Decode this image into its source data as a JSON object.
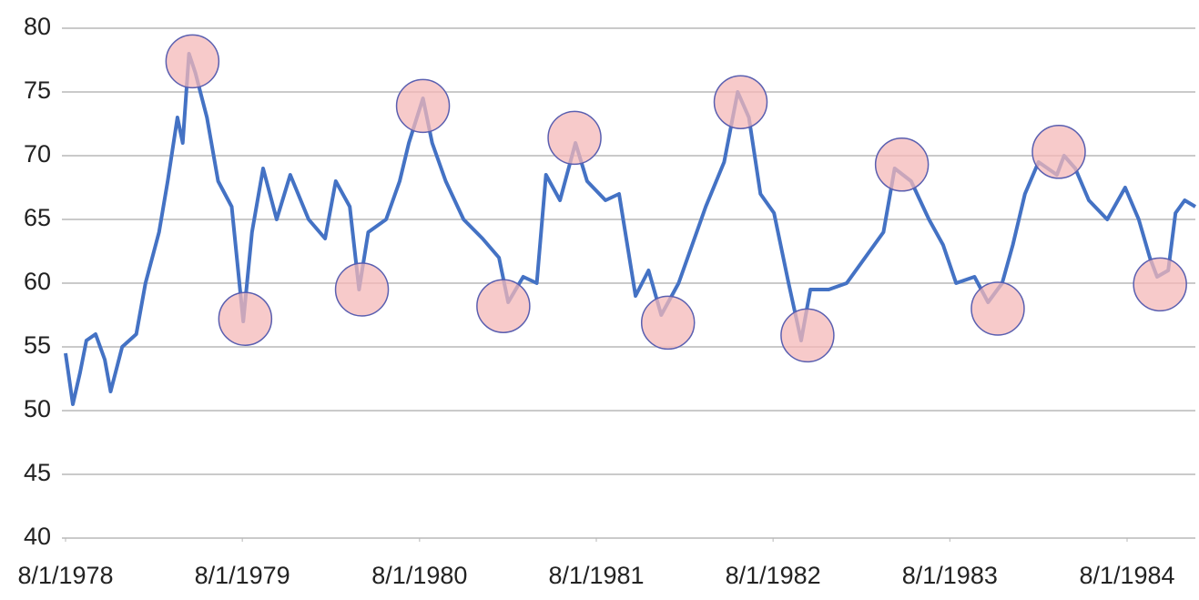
{
  "chart_data": {
    "type": "line",
    "color": "#4472c4",
    "grid": true,
    "x": [
      "1978-08-01",
      "1978-08-16",
      "1978-08-31",
      "1978-09-13",
      "1978-10-02",
      "1978-10-21",
      "1978-11-02",
      "1978-11-26",
      "1978-12-25",
      "1979-01-13",
      "1979-02-10",
      "1979-02-28",
      "1979-03-20",
      "1979-03-31",
      "1979-04-13",
      "1979-04-26",
      "1979-05-20",
      "1979-06-12",
      "1979-07-10",
      "1979-08-03",
      "1979-08-21",
      "1979-09-13",
      "1979-10-11",
      "1979-11-08",
      "1979-12-16",
      "1980-01-19",
      "1980-02-10",
      "1980-03-10",
      "1980-03-29",
      "1980-04-17",
      "1980-05-24",
      "1980-06-21",
      "1980-07-10",
      "1980-08-08",
      "1980-08-27",
      "1980-09-24",
      "1980-10-31",
      "1980-12-09",
      "1981-01-12",
      "1981-01-31",
      "1981-03-03",
      "1981-03-31",
      "1981-04-19",
      "1981-05-18",
      "1981-06-19",
      "1981-07-13",
      "1981-08-20",
      "1981-09-17",
      "1981-10-21",
      "1981-11-17",
      "1981-12-13",
      "1982-01-18",
      "1982-02-15",
      "1982-03-15",
      "1982-04-22",
      "1982-05-20",
      "1982-06-12",
      "1982-07-06",
      "1982-08-03",
      "1982-09-02",
      "1982-09-28",
      "1982-10-17",
      "1982-11-24",
      "1982-12-31",
      "1983-02-07",
      "1983-03-17",
      "1983-04-09",
      "1983-05-13",
      "1983-06-19",
      "1983-07-18",
      "1983-08-14",
      "1983-09-21",
      "1983-10-19",
      "1983-11-17",
      "1983-12-09",
      "1984-01-03",
      "1984-01-31",
      "1984-03-09",
      "1984-03-24",
      "1984-04-16",
      "1984-05-14",
      "1984-06-21",
      "1984-07-28",
      "1984-08-25",
      "1984-09-17",
      "1984-10-02",
      "1984-10-25",
      "1984-11-09",
      "1984-11-28",
      "1984-12-20"
    ],
    "values": [
      54.5,
      50.5,
      53,
      55.5,
      56,
      54,
      51.5,
      55,
      56,
      60,
      64,
      68,
      73,
      71,
      78,
      76.5,
      73,
      68,
      66,
      57,
      64,
      69,
      65,
      68.5,
      65,
      63.5,
      68,
      66,
      59.5,
      64,
      65,
      68,
      71,
      74.5,
      71,
      68,
      65,
      63.5,
      62,
      58.5,
      60.5,
      60,
      68.5,
      66.5,
      71,
      68,
      66.5,
      67,
      59,
      61,
      57.5,
      60,
      63,
      66,
      69.5,
      75,
      73,
      67,
      65.5,
      60,
      55.5,
      59.5,
      59.5,
      60,
      62,
      64,
      69,
      68,
      65,
      63,
      60,
      60.5,
      58.5,
      60,
      63,
      67,
      69.5,
      68.5,
      70,
      69,
      66.5,
      65,
      67.5,
      65,
      62,
      60.5,
      61,
      65.5,
      66.5,
      66
    ],
    "highlights": {
      "color": "#f4b8b8",
      "x": [
        "1979-04-20",
        "1979-08-07",
        "1980-04-04",
        "1980-08-08",
        "1981-01-21",
        "1981-06-17",
        "1981-12-27",
        "1982-05-26",
        "1982-10-11",
        "1983-04-24",
        "1983-11-08",
        "1984-03-13",
        "1984-10-08"
      ],
      "values": [
        77.4,
        57.2,
        59.5,
        73.9,
        58.2,
        71.4,
        56.9,
        74.2,
        55.9,
        69.3,
        58,
        70.3,
        59.9
      ]
    },
    "xlim": [
      "1978-08-01",
      "1984-12-20"
    ],
    "xticks": [
      {
        "value": "1978-08-01",
        "label": "8/1/1978"
      },
      {
        "value": "1979-08-01",
        "label": "8/1/1979"
      },
      {
        "value": "1980-08-01",
        "label": "8/1/1980"
      },
      {
        "value": "1981-08-01",
        "label": "8/1/1981"
      },
      {
        "value": "1982-08-01",
        "label": "8/1/1982"
      },
      {
        "value": "1983-08-01",
        "label": "8/1/1983"
      },
      {
        "value": "1984-08-01",
        "label": "8/1/1984"
      }
    ],
    "ylim": [
      40,
      80
    ],
    "yticks": [
      40,
      45,
      50,
      55,
      60,
      65,
      70,
      75,
      80
    ]
  }
}
